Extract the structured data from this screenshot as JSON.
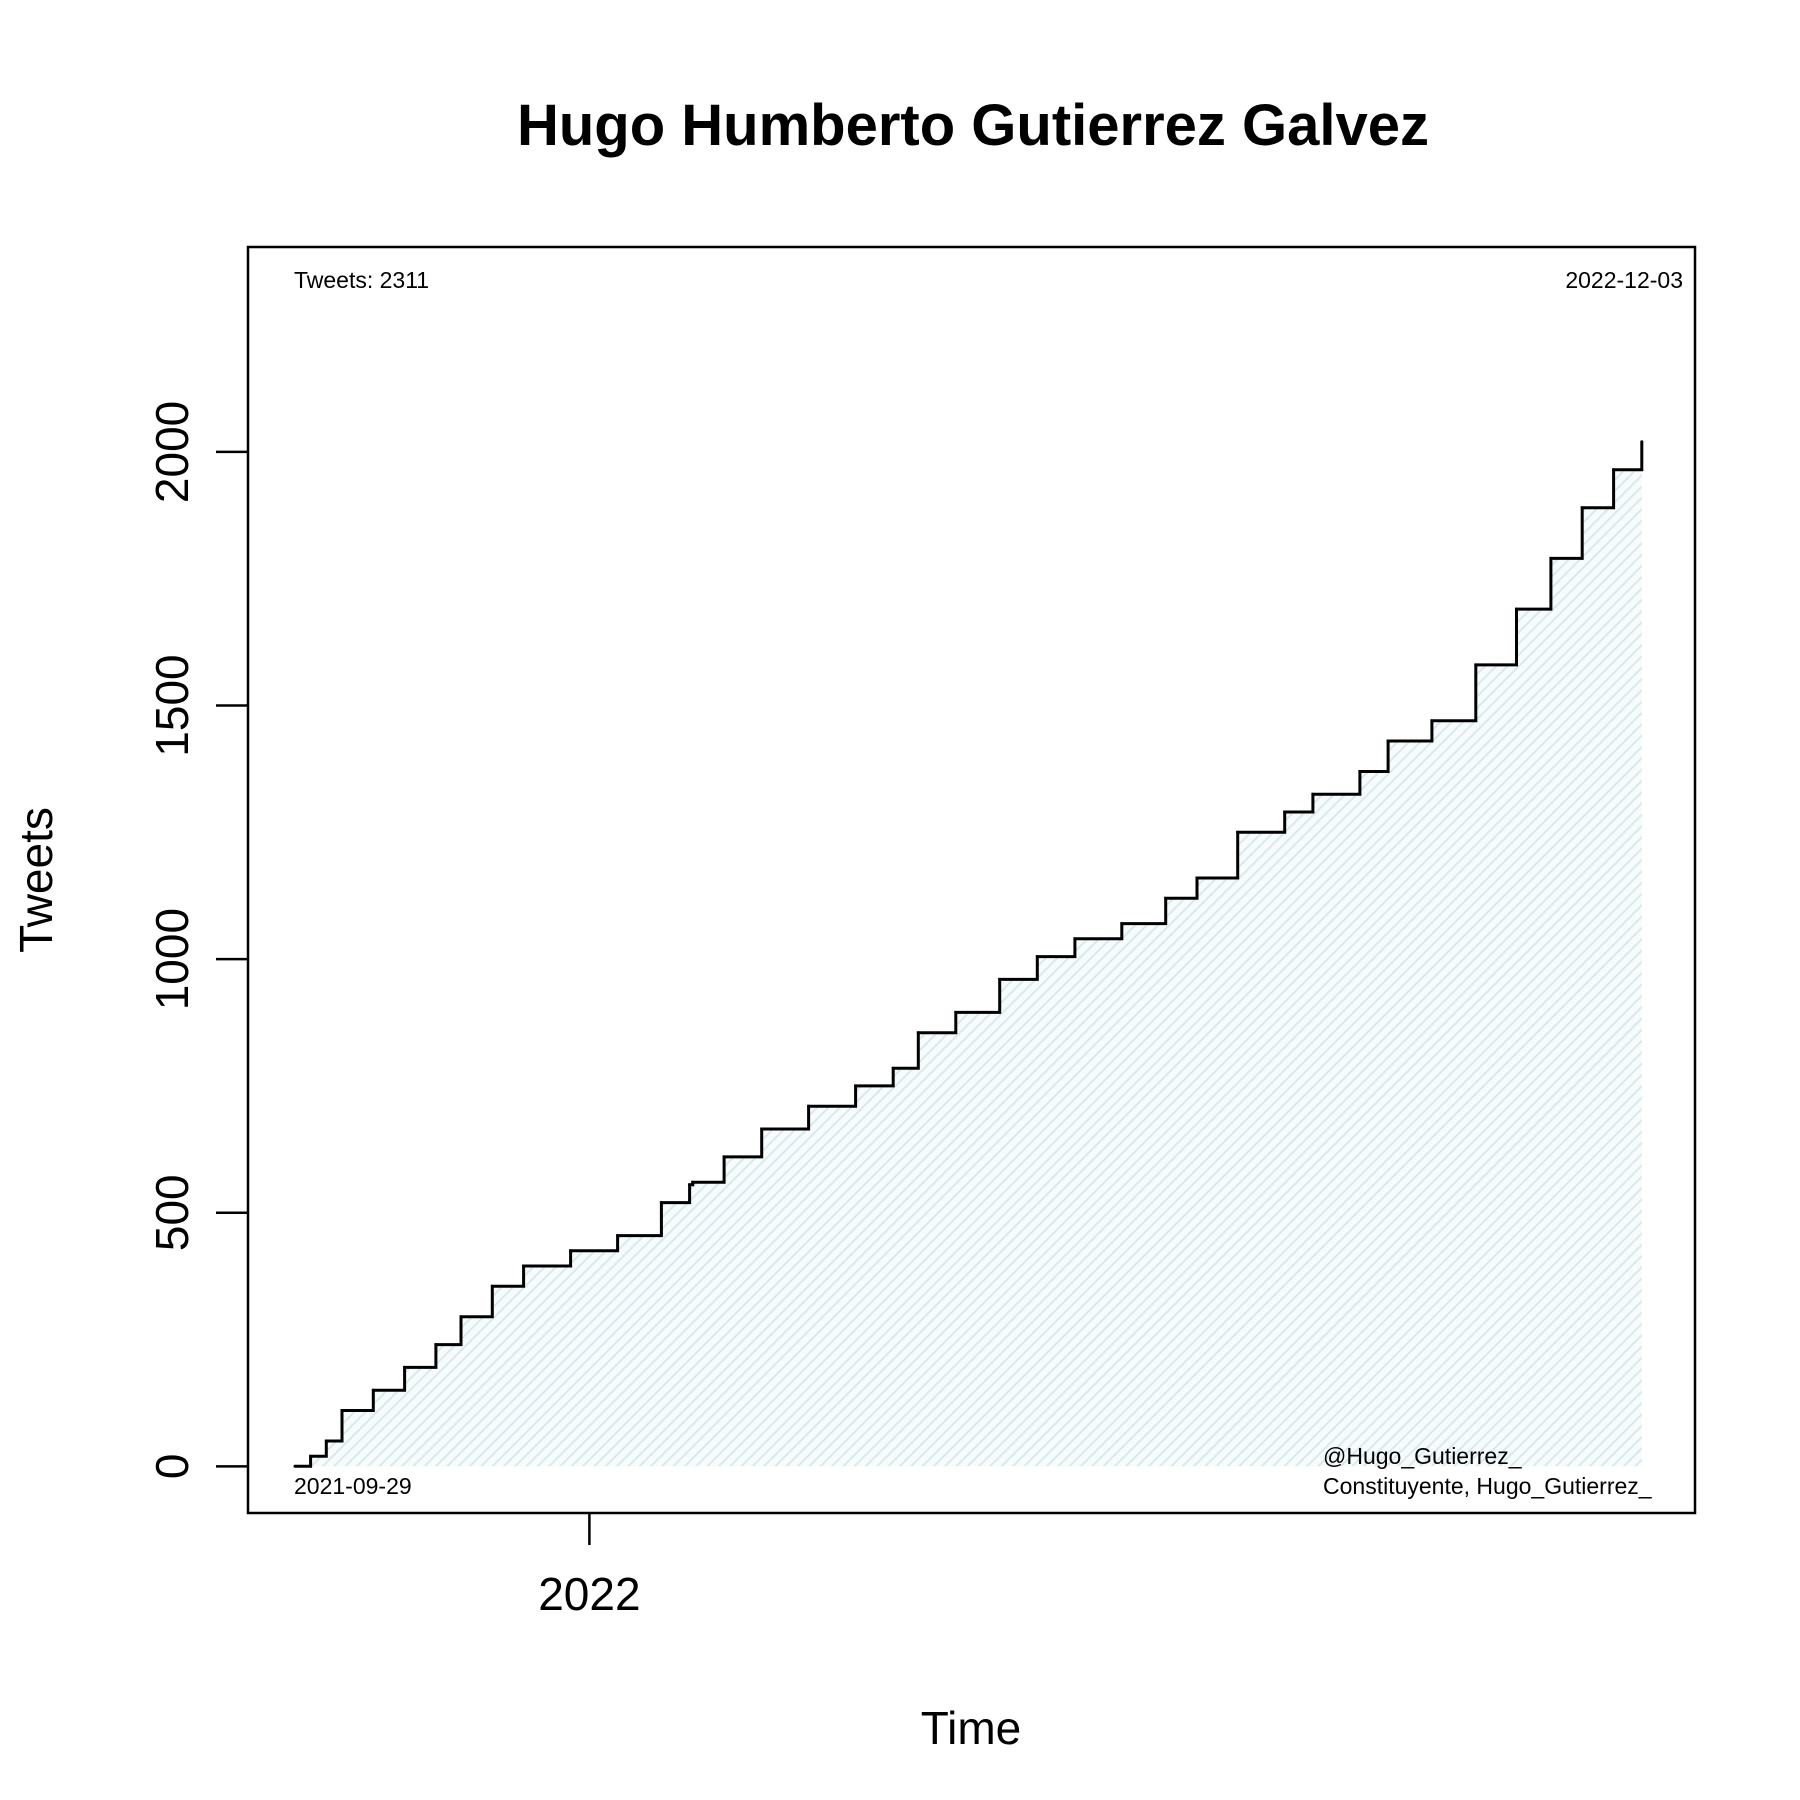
{
  "chart_data": {
    "type": "area",
    "title": "Hugo Humberto Gutierrez Galvez",
    "xlabel": "Time",
    "ylabel": "Tweets",
    "x_range": [
      "2021-09-29",
      "2022-12-03"
    ],
    "xlim": [
      "2021-09-14",
      "2022-12-20"
    ],
    "ylim": [
      -92,
      2404
    ],
    "x_ticks": [
      {
        "date": "2022-01-01",
        "label": "2022"
      }
    ],
    "y_ticks": [
      0,
      500,
      1000,
      1500,
      2000
    ],
    "grid": false,
    "fill_color": "#ddeef3",
    "line_color": "#000000",
    "series": [
      {
        "x": [
          "2021-09-29",
          "2021-10-04",
          "2021-10-09",
          "2021-10-14",
          "2021-10-24",
          "2021-11-03",
          "2021-11-13",
          "2021-11-21",
          "2021-12-01",
          "2021-12-11",
          "2021-12-26",
          "2022-01-10",
          "2022-01-24",
          "2022-02-02",
          "2022-02-03",
          "2022-02-13",
          "2022-02-25",
          "2022-03-12",
          "2022-03-27",
          "2022-04-08",
          "2022-04-16",
          "2022-04-28",
          "2022-05-12",
          "2022-05-24",
          "2022-06-05",
          "2022-06-20",
          "2022-07-04",
          "2022-07-14",
          "2022-07-27",
          "2022-08-11",
          "2022-08-20",
          "2022-09-04",
          "2022-09-13",
          "2022-09-27",
          "2022-10-11",
          "2022-10-24",
          "2022-11-04",
          "2022-11-14",
          "2022-11-24",
          "2022-12-03"
        ],
        "y": [
          0,
          20,
          50,
          110,
          150,
          195,
          240,
          295,
          355,
          395,
          425,
          455,
          520,
          555,
          560,
          610,
          665,
          710,
          750,
          785,
          855,
          895,
          960,
          1005,
          1040,
          1070,
          1120,
          1160,
          1250,
          1290,
          1325,
          1370,
          1430,
          1470,
          1580,
          1690,
          1790,
          1890,
          1965,
          2020
        ]
      }
    ],
    "annotations": {
      "top_left": "Tweets: 2311",
      "top_right": "2022-12-03",
      "bottom_left": "2021-09-29",
      "bottom_right_line1": "@Hugo_Gutierrez_",
      "bottom_right_line2": "Constituyente, Hugo_Gutierrez_"
    }
  }
}
